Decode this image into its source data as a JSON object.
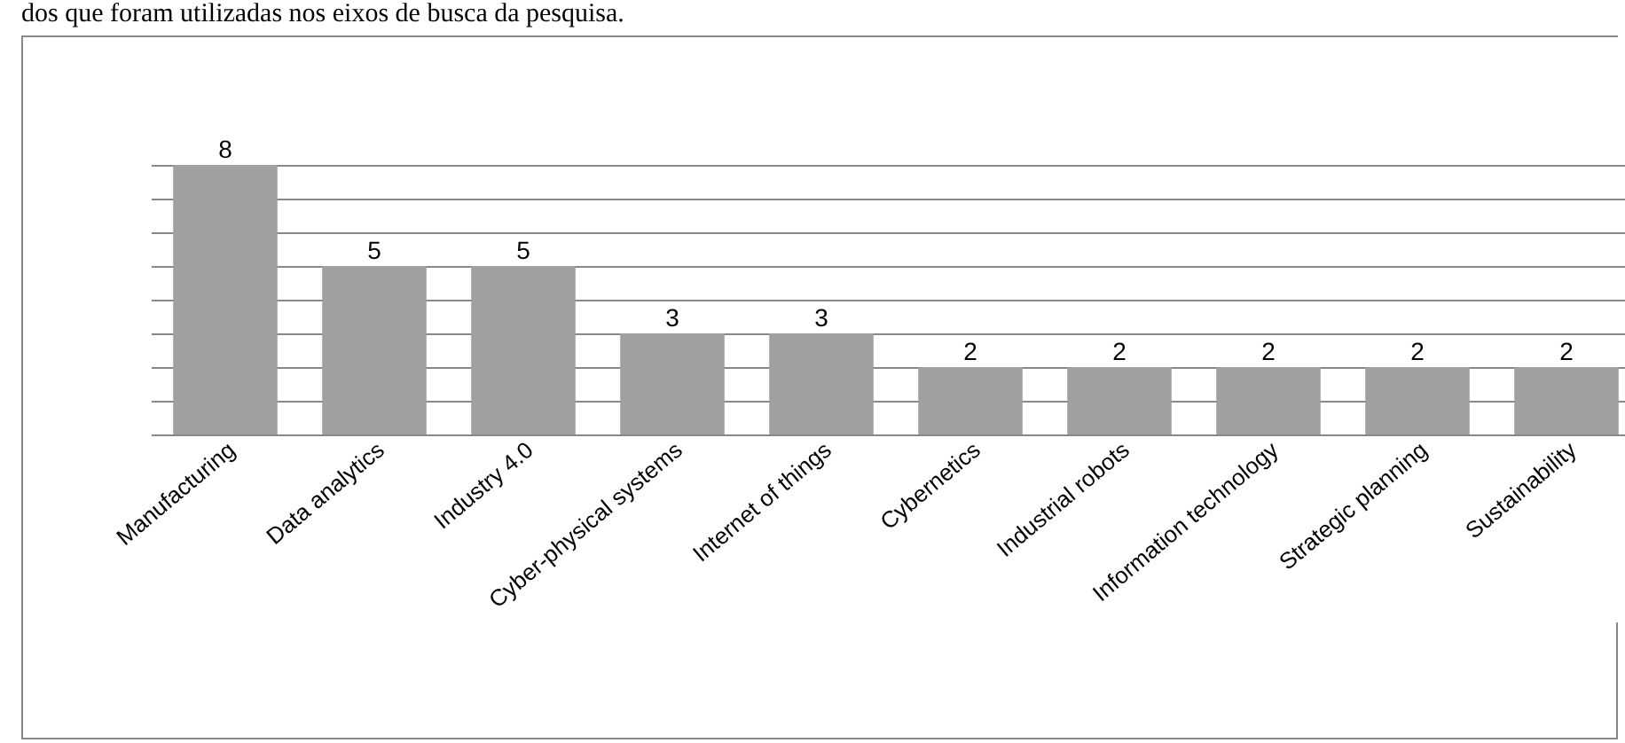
{
  "chart_data": {
    "type": "bar",
    "annotations": [
      "dos que foram utilizadas nos eixos de busca da pesquisa."
    ],
    "categories": [
      "Manufacturing",
      "Data analytics",
      "Industry 4.0",
      "Cyber-physical systems",
      "Internet of things",
      "Cybernetics",
      "Industrial robots",
      "Information technology",
      "Strategic planning",
      "Sustainability"
    ],
    "values": [
      8,
      5,
      5,
      3,
      3,
      2,
      2,
      2,
      2,
      2
    ],
    "color": "#a0a0a0",
    "grid": "y",
    "tick_labels": "x",
    "data_labels": true
  }
}
